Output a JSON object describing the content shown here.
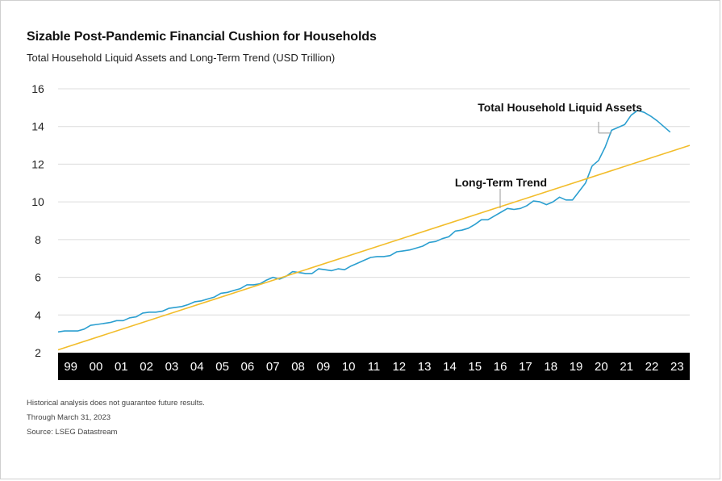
{
  "header": {
    "title": "Sizable Post-Pandemic Financial Cushion for Households",
    "subtitle": "Total Household Liquid Assets and Long-Term Trend (USD Trillion)"
  },
  "footer": {
    "disclaimer": "Historical analysis does not guarantee future results.",
    "through": "Through March 31, 2023",
    "source": "Source: LSEG Datastream"
  },
  "colors": {
    "assets": "#2b9fd0",
    "trend": "#f2bd2b",
    "grid": "#dcdcdc",
    "xaxis_bg": "#000000",
    "xaxis_text": "#ffffff"
  },
  "chart_data": {
    "type": "line",
    "title": "Sizable Post-Pandemic Financial Cushion for Households",
    "subtitle": "Total Household Liquid Assets and Long-Term Trend (USD Trillion)",
    "xlabel": "",
    "ylabel": "",
    "ylim": [
      2,
      16
    ],
    "xlim": [
      1999.0,
      2023.25
    ],
    "yticks": [
      "2",
      "4",
      "6",
      "8",
      "10",
      "12",
      "14",
      "16"
    ],
    "xticks": [
      "99",
      "00",
      "01",
      "02",
      "03",
      "04",
      "05",
      "06",
      "07",
      "08",
      "09",
      "10",
      "11",
      "12",
      "13",
      "14",
      "15",
      "16",
      "17",
      "18",
      "19",
      "20",
      "21",
      "22",
      "23"
    ],
    "grid": true,
    "legend": "none (direct labels on series)",
    "series": [
      {
        "name": "Total Household Liquid Assets",
        "color": "#2b9fd0",
        "points": [
          [
            1999.0,
            3.1
          ],
          [
            1999.25,
            3.15
          ],
          [
            1999.5,
            3.15
          ],
          [
            1999.75,
            3.15
          ],
          [
            2000.0,
            3.25
          ],
          [
            2000.25,
            3.45
          ],
          [
            2000.5,
            3.5
          ],
          [
            2000.75,
            3.55
          ],
          [
            2001.0,
            3.6
          ],
          [
            2001.25,
            3.7
          ],
          [
            2001.5,
            3.7
          ],
          [
            2001.75,
            3.85
          ],
          [
            2002.0,
            3.9
          ],
          [
            2002.25,
            4.1
          ],
          [
            2002.5,
            4.15
          ],
          [
            2002.75,
            4.15
          ],
          [
            2003.0,
            4.2
          ],
          [
            2003.25,
            4.35
          ],
          [
            2003.5,
            4.4
          ],
          [
            2003.75,
            4.45
          ],
          [
            2004.0,
            4.55
          ],
          [
            2004.25,
            4.7
          ],
          [
            2004.5,
            4.75
          ],
          [
            2004.75,
            4.85
          ],
          [
            2005.0,
            4.95
          ],
          [
            2005.25,
            5.15
          ],
          [
            2005.5,
            5.2
          ],
          [
            2005.75,
            5.3
          ],
          [
            2006.0,
            5.4
          ],
          [
            2006.25,
            5.6
          ],
          [
            2006.5,
            5.6
          ],
          [
            2006.75,
            5.65
          ],
          [
            2007.0,
            5.85
          ],
          [
            2007.25,
            6.0
          ],
          [
            2007.5,
            5.9
          ],
          [
            2007.75,
            6.05
          ],
          [
            2008.0,
            6.3
          ],
          [
            2008.25,
            6.25
          ],
          [
            2008.5,
            6.2
          ],
          [
            2008.75,
            6.2
          ],
          [
            2009.0,
            6.45
          ],
          [
            2009.25,
            6.4
          ],
          [
            2009.5,
            6.35
          ],
          [
            2009.75,
            6.45
          ],
          [
            2010.0,
            6.4
          ],
          [
            2010.25,
            6.6
          ],
          [
            2010.5,
            6.75
          ],
          [
            2010.75,
            6.9
          ],
          [
            2011.0,
            7.05
          ],
          [
            2011.25,
            7.1
          ],
          [
            2011.5,
            7.1
          ],
          [
            2011.75,
            7.15
          ],
          [
            2012.0,
            7.35
          ],
          [
            2012.25,
            7.4
          ],
          [
            2012.5,
            7.45
          ],
          [
            2012.75,
            7.55
          ],
          [
            2013.0,
            7.65
          ],
          [
            2013.25,
            7.85
          ],
          [
            2013.5,
            7.9
          ],
          [
            2013.75,
            8.05
          ],
          [
            2014.0,
            8.15
          ],
          [
            2014.25,
            8.45
          ],
          [
            2014.5,
            8.5
          ],
          [
            2014.75,
            8.6
          ],
          [
            2015.0,
            8.8
          ],
          [
            2015.25,
            9.05
          ],
          [
            2015.5,
            9.05
          ],
          [
            2015.75,
            9.25
          ],
          [
            2016.0,
            9.45
          ],
          [
            2016.25,
            9.65
          ],
          [
            2016.5,
            9.6
          ],
          [
            2016.75,
            9.65
          ],
          [
            2017.0,
            9.8
          ],
          [
            2017.25,
            10.05
          ],
          [
            2017.5,
            10.0
          ],
          [
            2017.75,
            9.85
          ],
          [
            2018.0,
            10.0
          ],
          [
            2018.25,
            10.25
          ],
          [
            2018.5,
            10.1
          ],
          [
            2018.75,
            10.1
          ],
          [
            2019.0,
            10.55
          ],
          [
            2019.25,
            11.0
          ],
          [
            2019.5,
            11.9
          ],
          [
            2019.75,
            12.2
          ],
          [
            2020.0,
            12.9
          ],
          [
            2020.25,
            13.8
          ],
          [
            2020.5,
            13.95
          ],
          [
            2020.75,
            14.1
          ],
          [
            2021.0,
            14.6
          ],
          [
            2021.25,
            14.85
          ],
          [
            2021.5,
            14.75
          ],
          [
            2021.75,
            14.55
          ],
          [
            2022.0,
            14.3
          ],
          [
            2022.25,
            14.0
          ],
          [
            2022.5,
            13.7
          ]
        ]
      },
      {
        "name": "Long-Term Trend",
        "color": "#f2bd2b",
        "points": [
          [
            1999.0,
            2.15
          ],
          [
            2023.25,
            13.0
          ]
        ]
      }
    ],
    "annotations": [
      {
        "label": "Total Household Liquid Assets",
        "series": "Total Household Liquid Assets"
      },
      {
        "label": "Long-Term Trend",
        "series": "Long-Term Trend"
      }
    ]
  }
}
